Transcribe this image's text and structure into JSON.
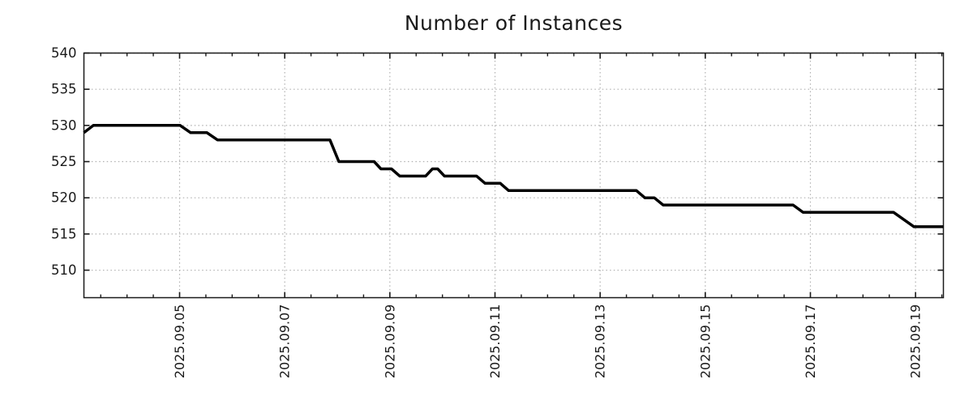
{
  "page": {
    "background_color": "#ffffff"
  },
  "chart_data": {
    "type": "line",
    "title": "Number of Instances",
    "legend_position": "none",
    "grid": {
      "show": true,
      "color": "#b0b0b0",
      "style": "dotted"
    },
    "axis_color": "#1a1a1a",
    "text_color": "#1a1a1a",
    "x_axis": {
      "unit": "days relative to 2025-09-05 00:00",
      "range_days": [
        -1.82,
        14.53
      ],
      "major_tick_step_days": 2,
      "minor_tick_step_days": 0.5,
      "major_ticks": [
        {
          "offset_days": 0,
          "label": "2025.09.05"
        },
        {
          "offset_days": 2,
          "label": "2025.09.07"
        },
        {
          "offset_days": 4,
          "label": "2025.09.09"
        },
        {
          "offset_days": 6,
          "label": "2025.09.11"
        },
        {
          "offset_days": 8,
          "label": "2025.09.13"
        },
        {
          "offset_days": 10,
          "label": "2025.09.15"
        },
        {
          "offset_days": 12,
          "label": "2025.09.17"
        },
        {
          "offset_days": 14,
          "label": "2025.09.19"
        }
      ]
    },
    "y_axis": {
      "range": [
        506.2,
        540
      ],
      "major_ticks": [
        510,
        515,
        520,
        525,
        530,
        535,
        540
      ]
    },
    "series": [
      {
        "name": "instances",
        "color": "#000000",
        "line_width": 3.5,
        "points_day_value": [
          [
            -1.82,
            529
          ],
          [
            -1.64,
            530
          ],
          [
            0.01,
            530
          ],
          [
            0.21,
            529
          ],
          [
            0.52,
            529
          ],
          [
            0.72,
            528
          ],
          [
            2.86,
            528
          ],
          [
            3.03,
            525
          ],
          [
            3.7,
            525
          ],
          [
            3.83,
            524
          ],
          [
            4.03,
            524
          ],
          [
            4.19,
            523
          ],
          [
            4.68,
            523
          ],
          [
            4.81,
            524
          ],
          [
            4.91,
            524
          ],
          [
            5.04,
            523
          ],
          [
            5.65,
            523
          ],
          [
            5.81,
            522
          ],
          [
            6.1,
            522
          ],
          [
            6.26,
            521
          ],
          [
            8.69,
            521
          ],
          [
            8.85,
            520
          ],
          [
            9.03,
            520
          ],
          [
            9.2,
            519
          ],
          [
            11.67,
            519
          ],
          [
            11.86,
            518
          ],
          [
            13.58,
            518
          ],
          [
            13.97,
            516
          ],
          [
            14.53,
            516
          ]
        ]
      }
    ]
  }
}
